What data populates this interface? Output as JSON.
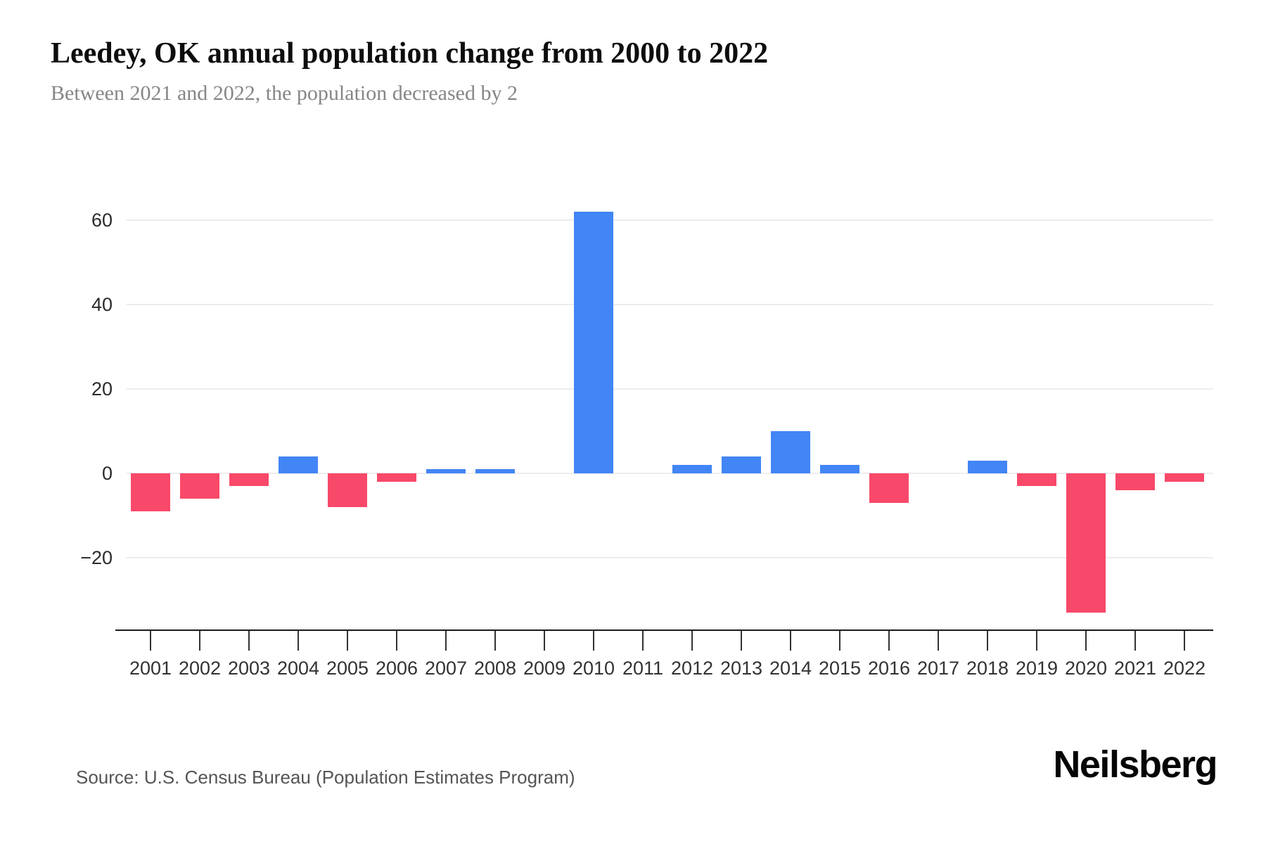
{
  "header": {
    "title": "Leedey, OK annual population change from 2000 to 2022",
    "subtitle": "Between 2021 and 2022, the population decreased by 2"
  },
  "chart_data": {
    "type": "bar",
    "title": "Leedey, OK annual population change from 2000 to 2022",
    "subtitle": "Between 2021 and 2022, the population decreased by 2",
    "categories": [
      "2001",
      "2002",
      "2003",
      "2004",
      "2005",
      "2006",
      "2007",
      "2008",
      "2009",
      "2010",
      "2011",
      "2012",
      "2013",
      "2014",
      "2015",
      "2016",
      "2017",
      "2018",
      "2019",
      "2020",
      "2021",
      "2022"
    ],
    "values": [
      -9,
      -6,
      -3,
      4,
      -8,
      -2,
      1,
      1,
      0,
      62,
      0,
      2,
      4,
      10,
      2,
      -7,
      0,
      3,
      -3,
      -33,
      -4,
      -2
    ],
    "xlabel": "",
    "ylabel": "",
    "yticks": [
      60,
      40,
      20,
      0,
      -20
    ],
    "ylim": [
      -37,
      71
    ],
    "grid": true,
    "legend": false,
    "positive_color": "#4285f4",
    "negative_color": "#f8496a",
    "gridline_color": "#ededed",
    "axis_color": "#1a1a1a",
    "tick_color": "#333333"
  },
  "footer": {
    "source": "Source: U.S. Census Bureau (Population Estimates Program)",
    "brand": "Neilsberg"
  }
}
